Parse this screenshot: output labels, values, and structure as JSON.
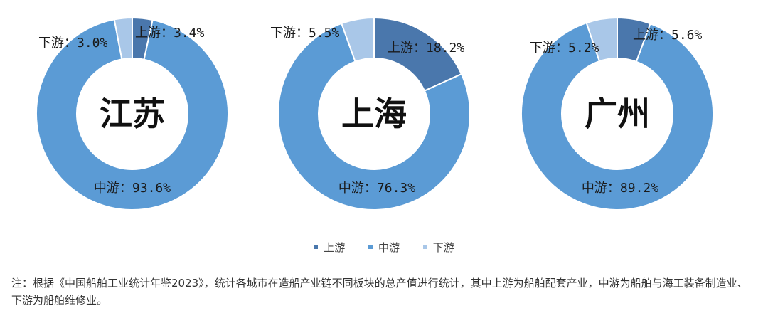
{
  "chart_data": [
    {
      "type": "pie",
      "center_label": "江苏",
      "categories": [
        "上游",
        "中游",
        "下游"
      ],
      "values": [
        3.4,
        93.6,
        3.0
      ],
      "labels": [
        "上游：3.4%",
        "中游：93.6%",
        "下游：3.0%"
      ]
    },
    {
      "type": "pie",
      "center_label": "上海",
      "categories": [
        "上游",
        "中游",
        "下游"
      ],
      "values": [
        18.2,
        76.3,
        5.5
      ],
      "labels": [
        "上游：18.2%",
        "中游：76.3%",
        "下游：5.5%"
      ]
    },
    {
      "type": "pie",
      "center_label": "广州",
      "categories": [
        "上游",
        "中游",
        "下游"
      ],
      "values": [
        5.6,
        89.2,
        5.2
      ],
      "labels": [
        "上游：5.6%",
        "中游：89.2%",
        "下游：5.2%"
      ]
    }
  ],
  "legend": [
    {
      "label": "上游",
      "color": "#4a77ac"
    },
    {
      "label": "中游",
      "color": "#5b9bd5"
    },
    {
      "label": "下游",
      "color": "#a9c7e8"
    }
  ],
  "colors": [
    "#4a77ac",
    "#5b9bd5",
    "#a9c7e8"
  ],
  "note": "注：根据《中国船舶工业统计年鉴2023》，统计各城市在造船产业链不同板块的总产值进行统计，其中上游为船舶配套产业，中游为船舶与海工装备制造业、下游为船舶维修业。"
}
